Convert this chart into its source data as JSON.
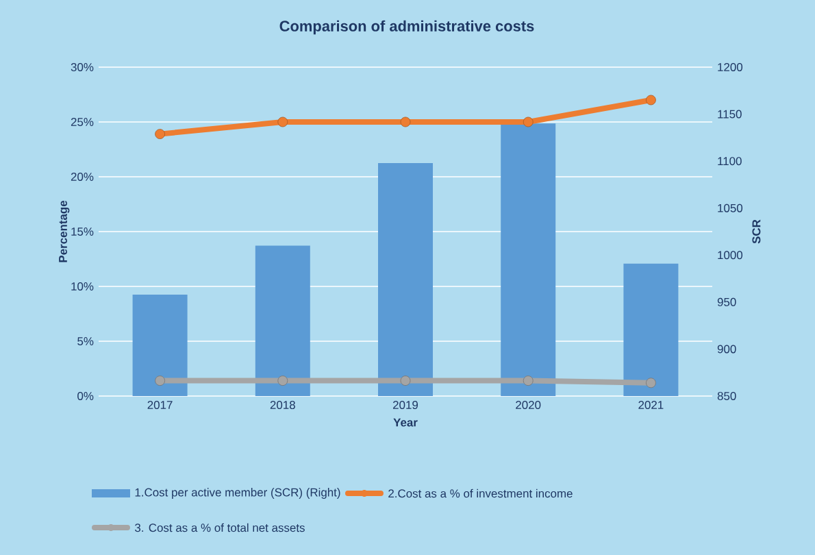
{
  "chart_data": {
    "type": "bar",
    "title": "Comparison of administrative costs",
    "xlabel": "Year",
    "ylabel": "Percentage",
    "y2label": "SCR",
    "categories": [
      "2017",
      "2018",
      "2019",
      "2020",
      "2021"
    ],
    "series": [
      {
        "name": "1.Cost per active member (SCR) (Right)",
        "axis": "y2",
        "color": "#5b9bd5",
        "values": [
          958,
          1010,
          1098,
          1140,
          991
        ]
      },
      {
        "name": "2.Cost as a % of investment income",
        "type": "line",
        "color": "#ed7d31",
        "marker": "circle",
        "values": [
          23.9,
          25.0,
          25.0,
          25.0,
          27.0
        ]
      },
      {
        "name": "3. Cost as a % of total net assets",
        "type": "line",
        "color": "#a5a5a5",
        "marker": "circle",
        "values": [
          1.4,
          1.4,
          1.4,
          1.4,
          1.2
        ]
      }
    ],
    "ylim": [
      0,
      30
    ],
    "yticks": [
      {
        "value": 0,
        "label": "0%"
      },
      {
        "value": 5,
        "label": "5%"
      },
      {
        "value": 10,
        "label": "10%"
      },
      {
        "value": 15,
        "label": "15%"
      },
      {
        "value": 20,
        "label": "20%"
      },
      {
        "value": 25,
        "label": "25%"
      },
      {
        "value": 30,
        "label": "30%"
      }
    ],
    "y2lim": [
      850,
      1200
    ],
    "y2ticks": [
      850,
      900,
      950,
      1000,
      1050,
      1100,
      1150,
      1200
    ],
    "grid": "y",
    "legend": "bottom"
  }
}
